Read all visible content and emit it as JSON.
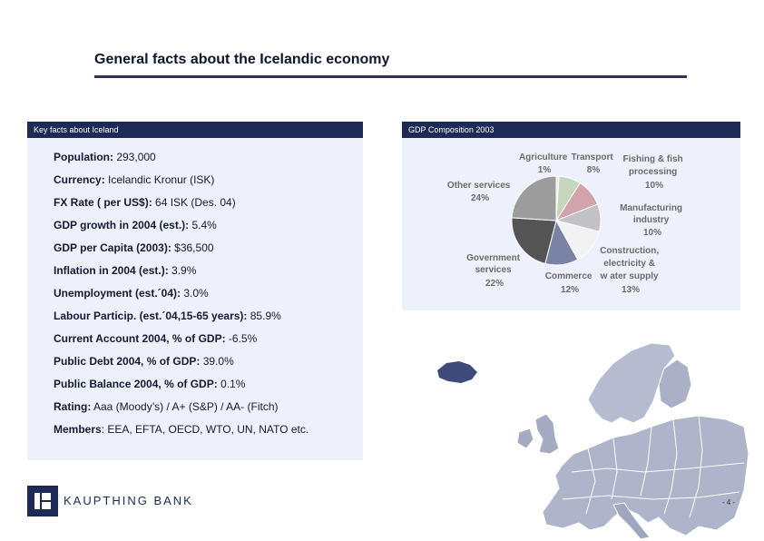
{
  "header": {
    "title": "General facts about the Icelandic economy"
  },
  "key_facts": {
    "heading": "Key facts about Iceland",
    "items": [
      {
        "key": "Population:",
        "value": " 293,000"
      },
      {
        "key": "Currency:",
        "value": " Icelandic Kronur (ISK)"
      },
      {
        "key": "FX Rate ( per US$):",
        "value": " 64 ISK (Des. 04)"
      },
      {
        "key": "GDP growth in 2004 (est.):",
        "value": " 5.4%"
      },
      {
        "key": "GDP per Capita (2003):",
        "value": " $36,500"
      },
      {
        "key": "Inflation in 2004 (est.):",
        "value": " 3.9%"
      },
      {
        "key": "Unemployment (est.´04):",
        "value": " 3.0%"
      },
      {
        "key": "Labour Particip. (est.´04,15-65 years):",
        "value": " 85.9%"
      },
      {
        "key": "Current Account 2004, % of GDP:",
        "value": " -6.5%"
      },
      {
        "key": "Public Debt  2004, % of GDP:",
        "value": " 39.0%"
      },
      {
        "key": "Public Balance 2004, % of GDP:",
        "value": " 0.1%"
      },
      {
        "key": "Rating:",
        "value": " Aaa (Moody’s) / A+ (S&P) / AA- (Fitch)"
      },
      {
        "key": "Members",
        "value": ": EEA, EFTA, OECD, WTO, UN, NATO etc."
      }
    ]
  },
  "gdp": {
    "heading": "GDP Composition 2003",
    "chart_data": {
      "type": "pie",
      "slices": [
        {
          "label": "Agriculture",
          "value": 1,
          "pct": "1%",
          "color": "#e6ece0"
        },
        {
          "label": "Transport",
          "value": 8,
          "pct": "8%",
          "color": "#c4d6bb"
        },
        {
          "label": "Fishing & fish processing",
          "value": 10,
          "pct": "10%",
          "color": "#d1a3aa"
        },
        {
          "label": "Manufacturing industry",
          "value": 10,
          "pct": "10%",
          "color": "#c2c2c6"
        },
        {
          "label": "Construction, electricity & w ater supply",
          "value": 13,
          "pct": "13%",
          "color": "#f2f2f2"
        },
        {
          "label": "Commerce",
          "value": 12,
          "pct": "12%",
          "color": "#7a82a6"
        },
        {
          "label": "Government services",
          "value": 22,
          "pct": "22%",
          "color": "#545454"
        },
        {
          "label": "Other services",
          "value": 24,
          "pct": "24%",
          "color": "#9c9c9c"
        }
      ]
    }
  },
  "footer": {
    "brand": "KAUPTHING BANK",
    "page": "- 4 -"
  }
}
